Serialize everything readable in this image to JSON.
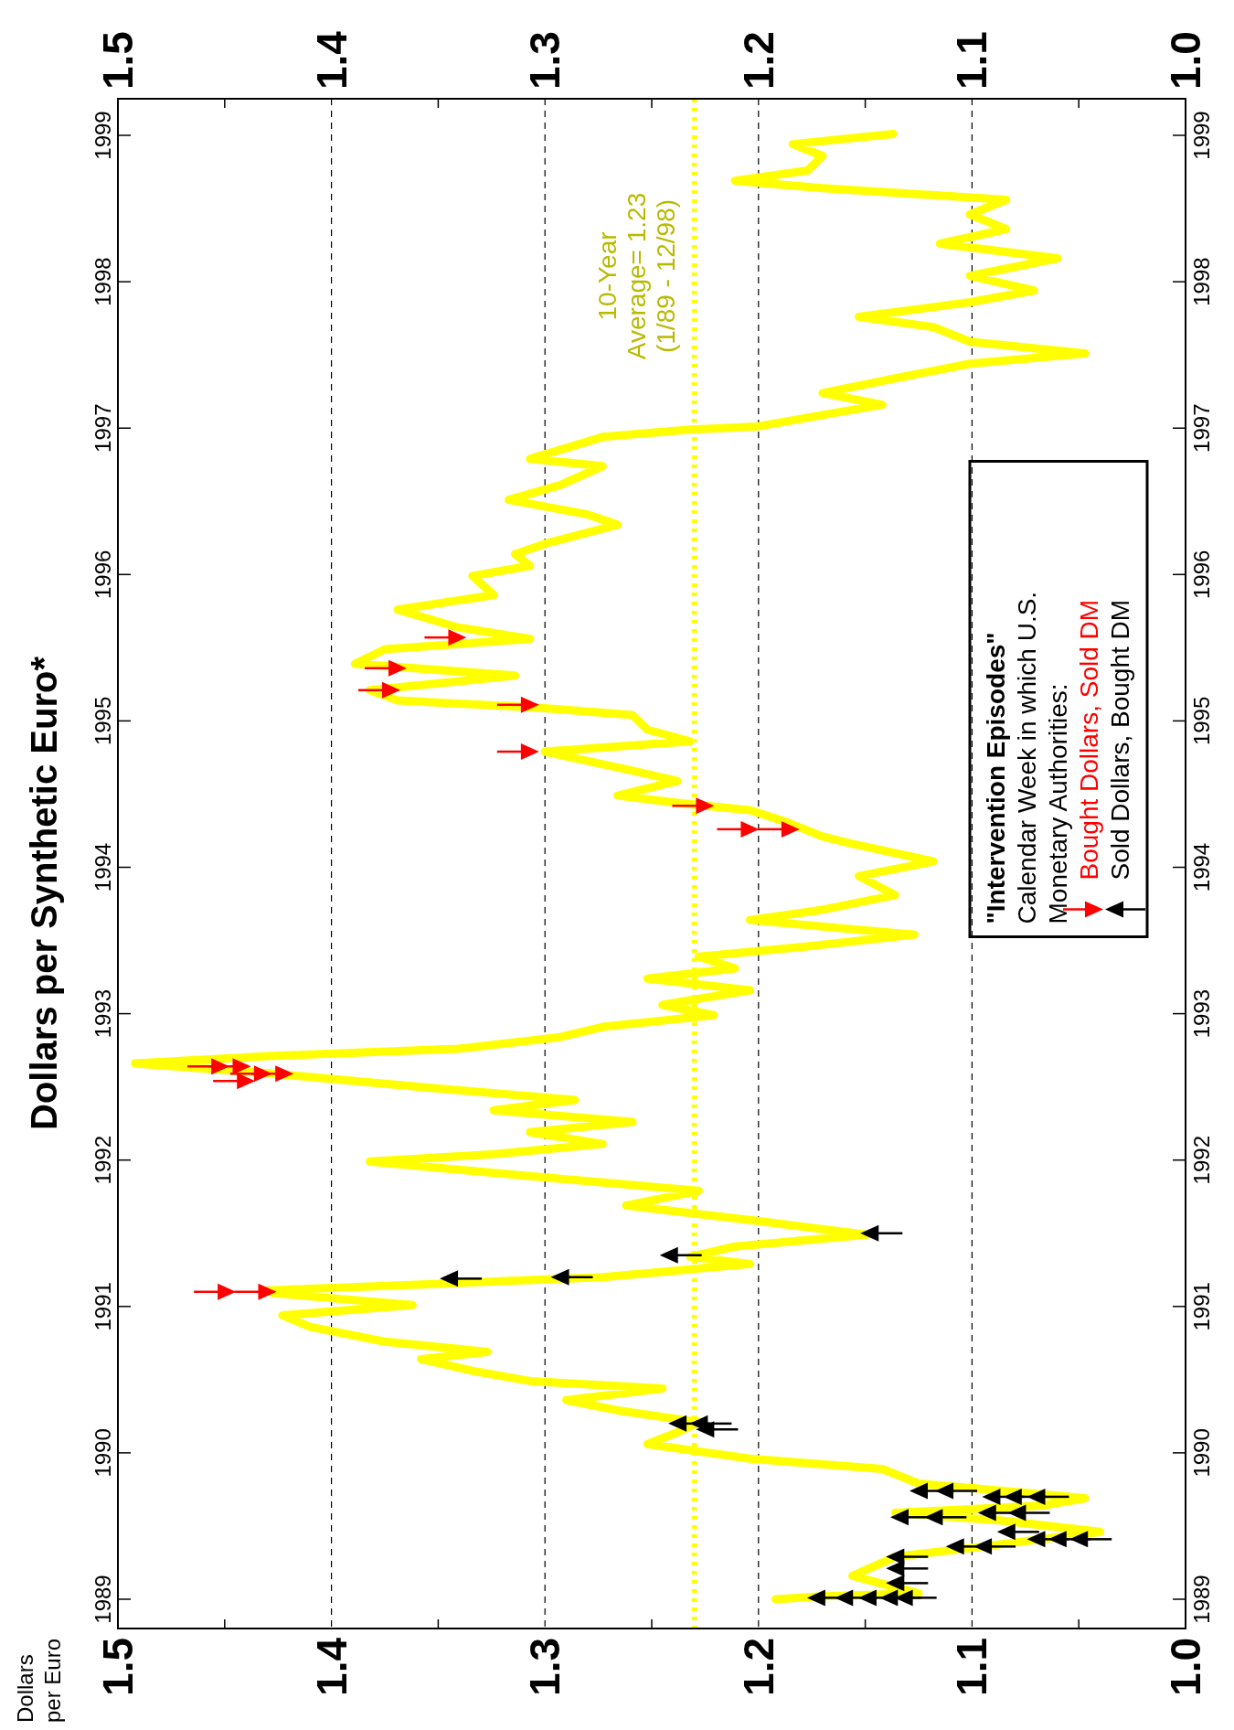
{
  "chart_data": {
    "type": "line",
    "title": "Dollars per Synthetic Euro*",
    "annotations": [
      "Dollars\nper Euro"
    ],
    "legend_title": "\"Intervention Episodes\"\nCalendar Week in which U.S.\nMonetary Authorities:",
    "legend": "right",
    "grid": "x",
    "xlim": [
      1.5,
      1.0
    ],
    "xticks": [
      {
        "value": 1.5,
        "label": "1.5"
      },
      {
        "value": 1.45,
        "label": null
      },
      1.4,
      {
        "value": 1.35,
        "label": null
      },
      1.3,
      {
        "value": 1.25,
        "label": null
      },
      1.2,
      {
        "value": 1.15,
        "label": null
      },
      1.1,
      {
        "value": 1.05,
        "label": null
      },
      {
        "value": 1.0,
        "label": "1.0"
      }
    ],
    "x2lim": [
      1.5,
      1.0
    ],
    "x2ticks": [
      {
        "value": 1.5,
        "label": "1.5"
      },
      {
        "value": 1.45,
        "label": null
      },
      1.4,
      {
        "value": 1.35,
        "label": null
      },
      1.3,
      {
        "value": 1.25,
        "label": null
      },
      1.2,
      {
        "value": 1.15,
        "label": null
      },
      1.1,
      {
        "value": 1.05,
        "label": null
      },
      {
        "value": 1.0,
        "label": "1.0"
      }
    ],
    "ylim": [
      1988.8,
      1999.25
    ],
    "yticks": [
      1989,
      1990,
      1991,
      1992,
      1993,
      1994,
      1995,
      1996,
      1997,
      1998,
      1999
    ],
    "y2lim": [
      1988.8,
      1999.25
    ],
    "y2ticks": [
      1989,
      1990,
      1991,
      1992,
      1993,
      1994,
      1995,
      1996,
      1997,
      1998,
      1999
    ],
    "ref_lines": [
      {
        "axis": "x",
        "value": 1.23,
        "label": "10-Year\nAverage= 1.23\n(1/89 - 12/98)",
        "color": "#ffff00",
        "line_style": "dotted"
      }
    ],
    "series": [
      {
        "color": "#ffff00",
        "values": [
          1989.0,
          1989.02,
          1989.04,
          1989.16,
          1989.29,
          1989.36,
          1989.46,
          1989.54,
          1989.59,
          1989.64,
          1989.69,
          1989.76,
          1989.79,
          1989.89,
          1989.96,
          1990.06,
          1990.14,
          1990.21,
          1990.29,
          1990.36,
          1990.44,
          1990.49,
          1990.56,
          1990.64,
          1990.69,
          1990.76,
          1990.86,
          1990.94,
          1991.01,
          1991.09,
          1991.11,
          1991.16,
          1991.2,
          1991.29,
          1991.34,
          1991.41,
          1991.49,
          1991.59,
          1991.69,
          1991.79,
          1991.89,
          1991.99,
          1992.04,
          1992.11,
          1992.19,
          1992.26,
          1992.34,
          1992.41,
          1992.49,
          1992.59,
          1992.66,
          1992.71,
          1992.76,
          1992.84,
          1992.91,
          1992.99,
          1993.06,
          1993.16,
          1993.24,
          1993.31,
          1993.39,
          1993.46,
          1993.54,
          1993.64,
          1993.71,
          1993.81,
          1993.94,
          1994.04,
          1994.16,
          1994.21,
          1994.31,
          1994.39,
          1994.44,
          1994.49,
          1994.59,
          1994.66,
          1994.79,
          1994.86,
          1994.94,
          1995.04,
          1995.09,
          1995.14,
          1995.21,
          1995.31,
          1995.39,
          1995.49,
          1995.56,
          1995.64,
          1995.76,
          1995.86,
          1995.99,
          1996.06,
          1996.14,
          1996.21,
          1996.34,
          1996.41,
          1996.51,
          1996.61,
          1996.74,
          1996.79,
          1996.94,
          1996.99,
          1997.01,
          1997.09,
          1997.16,
          1997.24,
          1997.34,
          1997.44,
          1997.51,
          1997.59,
          1997.69,
          1997.76,
          1997.86,
          1997.94,
          1998.04,
          1998.16,
          1998.26,
          1998.36,
          1998.46,
          1998.56,
          1998.64,
          1998.69,
          1998.76,
          1998.86,
          1998.94,
          1999.01
        ],
        "x": [
          1.192,
          1.17,
          1.125,
          1.156,
          1.136,
          1.095,
          1.04,
          1.088,
          1.136,
          1.067,
          1.047,
          1.101,
          1.125,
          1.142,
          1.204,
          1.252,
          1.238,
          1.228,
          1.266,
          1.29,
          1.245,
          1.307,
          1.334,
          1.358,
          1.327,
          1.375,
          1.41,
          1.423,
          1.362,
          1.427,
          1.43,
          1.341,
          1.273,
          1.204,
          1.232,
          1.211,
          1.149,
          1.204,
          1.262,
          1.228,
          1.307,
          1.382,
          1.324,
          1.273,
          1.307,
          1.259,
          1.324,
          1.286,
          1.351,
          1.427,
          1.492,
          1.43,
          1.341,
          1.293,
          1.273,
          1.221,
          1.245,
          1.204,
          1.252,
          1.211,
          1.228,
          1.177,
          1.127,
          1.204,
          1.17,
          1.136,
          1.153,
          1.118,
          1.156,
          1.17,
          1.187,
          1.204,
          1.238,
          1.266,
          1.238,
          1.259,
          1.3,
          1.232,
          1.252,
          1.259,
          1.303,
          1.369,
          1.382,
          1.314,
          1.389,
          1.375,
          1.307,
          1.341,
          1.369,
          1.324,
          1.334,
          1.307,
          1.314,
          1.3,
          1.266,
          1.28,
          1.317,
          1.293,
          1.273,
          1.307,
          1.273,
          1.232,
          1.201,
          1.17,
          1.142,
          1.17,
          1.136,
          1.101,
          1.047,
          1.101,
          1.118,
          1.153,
          1.101,
          1.071,
          1.101,
          1.06,
          1.115,
          1.084,
          1.101,
          1.084,
          1.17,
          1.211,
          1.177,
          1.17,
          1.184,
          1.137
        ]
      },
      {
        "type": "scatter",
        "name": "Bought Dollars, Sold DM",
        "color": "#ff0000",
        "marker": "triangle",
        "values": [
          1991.1,
          1991.1,
          1992.64,
          1992.64,
          1992.59,
          1992.59,
          1992.54,
          1994.26,
          1994.26,
          1994.42,
          1994.79,
          1995.11,
          1995.21,
          1995.36,
          1995.57
        ],
        "x": [
          1.449,
          1.43,
          1.452,
          1.442,
          1.432,
          1.422,
          1.44,
          1.204,
          1.185,
          1.225,
          1.307,
          1.307,
          1.372,
          1.369,
          1.341
        ]
      },
      {
        "type": "scatter",
        "name": "Sold Dollars, Bought DM",
        "color": "#000000",
        "marker": "triangle",
        "values": [
          1989.01,
          1989.01,
          1989.01,
          1989.01,
          1989.01,
          1989.11,
          1989.21,
          1989.29,
          1989.36,
          1989.36,
          1989.41,
          1989.41,
          1989.41,
          1989.46,
          1989.56,
          1989.56,
          1989.59,
          1989.59,
          1989.7,
          1989.7,
          1989.7,
          1989.74,
          1989.74,
          1990.16,
          1990.2,
          1990.2,
          1991.19,
          1991.2,
          1991.35,
          1991.5
        ],
        "x": [
          1.173,
          1.16,
          1.149,
          1.139,
          1.132,
          1.136,
          1.136,
          1.136,
          1.108,
          1.095,
          1.07,
          1.06,
          1.05,
          1.084,
          1.134,
          1.118,
          1.093,
          1.079,
          1.091,
          1.081,
          1.07,
          1.125,
          1.113,
          1.225,
          1.238,
          1.228,
          1.345,
          1.293,
          1.242,
          1.148
        ]
      }
    ]
  }
}
